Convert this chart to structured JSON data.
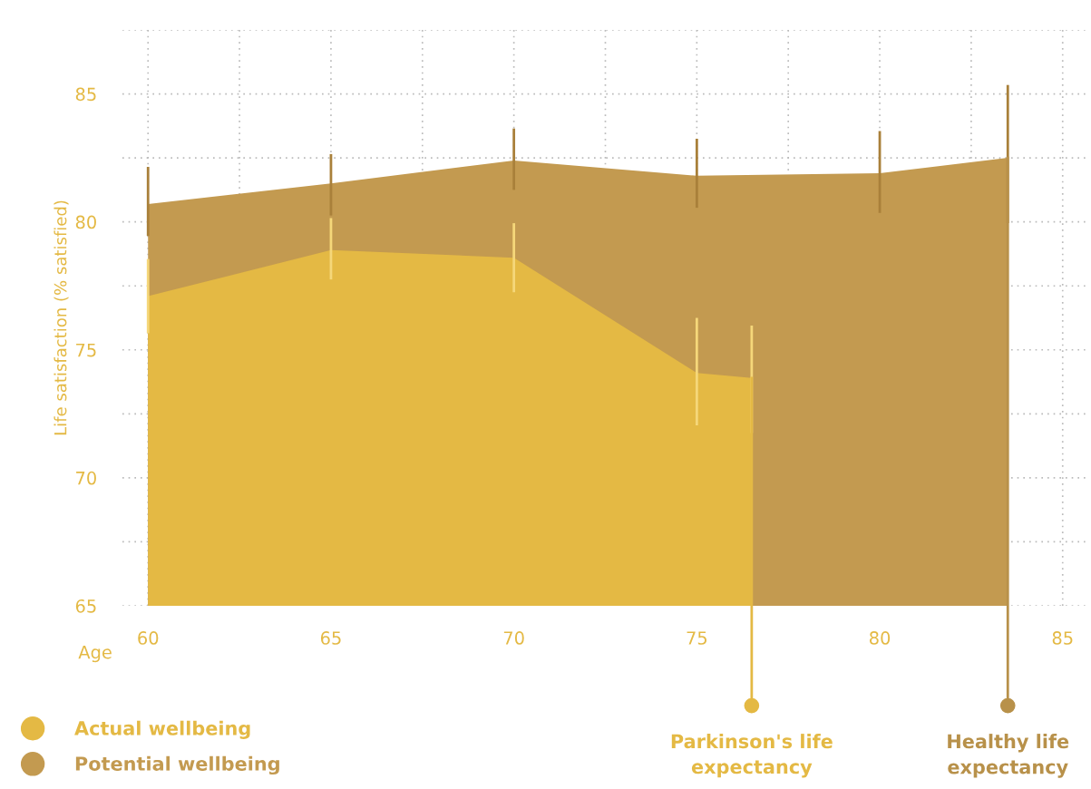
{
  "chart_data": {
    "type": "area",
    "xlabel": "Age",
    "ylabel": "Life satisfaction (% satisfied)",
    "xlim": [
      59.3,
      85.7
    ],
    "ylim": [
      65,
      87.5
    ],
    "xticks": [
      60,
      {
        "value": 62.5,
        "label": null
      },
      65,
      {
        "value": 67.5,
        "label": null
      },
      70,
      {
        "value": 72.5,
        "label": null
      },
      75,
      {
        "value": 77.5,
        "label": null
      },
      80,
      {
        "value": 82.5,
        "label": null
      },
      85
    ],
    "yticks": [
      65,
      {
        "value": 67.5,
        "label": null
      },
      70,
      {
        "value": 72.5,
        "label": null
      },
      75,
      {
        "value": 77.5,
        "label": null
      },
      80,
      {
        "value": 82.5,
        "label": null
      },
      85,
      {
        "value": 87.5,
        "label": null
      }
    ],
    "grid": true,
    "legend": "bottom left",
    "series": [
      {
        "name": "Potential wellbeing",
        "color": "#c39a50",
        "x": [
          60,
          65,
          70,
          75,
          80,
          83.5
        ],
        "values": [
          80.7,
          81.5,
          82.4,
          81.8,
          81.9,
          82.5
        ],
        "errors": [
          [
            79.5,
            82.1
          ],
          [
            80.3,
            82.6
          ],
          [
            81.3,
            83.6
          ],
          [
            80.6,
            83.2
          ],
          [
            80.4,
            83.5
          ],
          [
            80.0,
            85.3
          ]
        ]
      },
      {
        "name": "Actual wellbeing",
        "color": "#e4b944",
        "x": [
          60,
          65,
          70,
          75,
          76.5
        ],
        "values": [
          77.1,
          78.9,
          78.6,
          74.1,
          73.9
        ],
        "errors": [
          [
            75.7,
            78.5
          ],
          [
            77.8,
            80.1
          ],
          [
            77.3,
            79.9
          ],
          [
            72.1,
            76.2
          ],
          [
            71.8,
            75.9
          ]
        ]
      }
    ],
    "ref_lines": [
      {
        "axis": "x",
        "value": 76.5,
        "label": "Parkinson's life\nexpectancy",
        "color": "#e4b944"
      },
      {
        "axis": "x",
        "value": 83.5,
        "label": "Healthy life\nexpectancy",
        "color": "#b8914a"
      }
    ]
  }
}
